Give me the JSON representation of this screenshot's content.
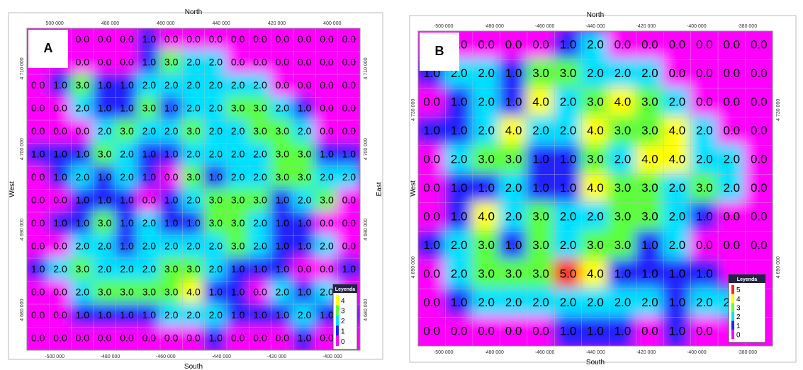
{
  "panels": [
    {
      "label": "A",
      "north": "North",
      "south": "South",
      "west": "West",
      "east": "East",
      "top_ticks": [
        "500 000",
        "480 000",
        "460 000",
        "440 000",
        "420 000",
        "400 000"
      ],
      "bottom_ticks": [
        "-500 000",
        "-480 000",
        "-460 000",
        "-440 000",
        "-420 000",
        "-400 000"
      ],
      "left_ticks": [
        "4 710 000",
        "4 700 000",
        "4 690 000",
        "4 680 000"
      ],
      "right_ticks": [
        "4 710 000",
        "4 700 000",
        "4 690 000",
        "4 680 000"
      ],
      "legend": {
        "title": "Leyenda",
        "levels": [
          "4",
          "3",
          "2",
          "1",
          "0"
        ]
      },
      "grid": [
        [
          null,
          null,
          "0.0",
          "0.0",
          "0.0",
          "1.0",
          "0.0",
          "0.0",
          "0.0",
          "0.0",
          "0.0",
          "0.0",
          "0.0",
          "0.0",
          "0.0"
        ],
        [
          null,
          null,
          "0.0",
          "0.0",
          "0.0",
          "1.0",
          "3.0",
          "2.0",
          "2.0",
          "0.0",
          "0.0",
          "0.0",
          "0.0",
          "0.0",
          "0.0"
        ],
        [
          "0.0",
          "1.0",
          "3.0",
          "1.0",
          "1.0",
          "2.0",
          "2.0",
          "2.0",
          "2.0",
          "2.0",
          "2.0",
          "0.0",
          "0.0",
          "0.0",
          "0.0"
        ],
        [
          "0.0",
          "0.0",
          "2.0",
          "1.0",
          "1.0",
          "3.0",
          "1.0",
          "2.0",
          "2.0",
          "3.0",
          "3.0",
          "2.0",
          "1.0",
          "0.0",
          "0.0"
        ],
        [
          "0.0",
          "0.0",
          "0.0",
          "2.0",
          "3.0",
          "2.0",
          "2.0",
          "3.0",
          "2.0",
          "2.0",
          "3.0",
          "3.0",
          "2.0",
          "0.0",
          "0.0"
        ],
        [
          "1.0",
          "1.0",
          "1.0",
          "3.0",
          "2.0",
          "1.0",
          "1.0",
          "2.0",
          "2.0",
          "2.0",
          "2.0",
          "3.0",
          "3.0",
          "1.0",
          "1.0"
        ],
        [
          "0.0",
          "1.0",
          "2.0",
          "1.0",
          "2.0",
          "1.0",
          "0.0",
          "3.0",
          "1.0",
          "2.0",
          "2.0",
          "3.0",
          "3.0",
          "2.0",
          "2.0"
        ],
        [
          "0.0",
          "0.0",
          "1.0",
          "1.0",
          "1.0",
          "0.0",
          "1.0",
          "2.0",
          "3.0",
          "3.0",
          "3.0",
          "1.0",
          "2.0",
          "3.0",
          "0.0"
        ],
        [
          "0.0",
          "1.0",
          "1.0",
          "3.0",
          "1.0",
          "2.0",
          "1.0",
          "1.0",
          "3.0",
          "3.0",
          "2.0",
          "1.0",
          "1.0",
          "0.0",
          "0.0"
        ],
        [
          "0.0",
          "0.0",
          "2.0",
          "2.0",
          "1.0",
          "2.0",
          "2.0",
          "2.0",
          "2.0",
          "3.0",
          "2.0",
          "1.0",
          "1.0",
          "2.0",
          "0.0"
        ],
        [
          "1.0",
          "2.0",
          "3.0",
          "2.0",
          "2.0",
          "2.0",
          "3.0",
          "3.0",
          "2.0",
          "1.0",
          "1.0",
          "1.0",
          "0.0",
          "0.0",
          "1.0"
        ],
        [
          "0.0",
          "0.0",
          "2.0",
          "3.0",
          "3.0",
          "3.0",
          "3.0",
          "4.0",
          "1.0",
          "1.0",
          "0.0",
          "2.0",
          "1.0",
          "2.0",
          "0.0"
        ],
        [
          "0.0",
          "0.0",
          "1.0",
          "1.0",
          "1.0",
          "1.0",
          "2.0",
          "2.0",
          "2.0",
          "1.0",
          "1.0",
          "1.0",
          "2.0",
          "1.0",
          "1.0"
        ],
        [
          "0.0",
          "0.0",
          "0.0",
          "0.0",
          "0.0",
          "0.0",
          "0.0",
          "0.0",
          "1.0",
          "0.0",
          "0.0",
          "0.0",
          "1.0",
          "0.0",
          "0.0"
        ]
      ]
    },
    {
      "label": "B",
      "north": "North",
      "south": "South",
      "west": "West",
      "top_ticks": [
        "-500 000",
        "-480 000",
        "-460 000",
        "-440 000",
        "-420 000",
        "-400 000",
        "-380 000"
      ],
      "bottom_ticks": [
        "-500 000",
        "-480 000",
        "-460 000",
        "-440 000",
        "-420 000",
        "-400 000",
        "-380 000"
      ],
      "left_ticks": [
        "4 730 000",
        "4 690 000"
      ],
      "right_ticks": [
        "4 730 000",
        "4 690 000"
      ],
      "legend": {
        "title": "Leyenda",
        "levels": [
          "5",
          "4",
          "3",
          "2",
          "1",
          "0"
        ]
      },
      "grid": [
        [
          null,
          "0.0",
          "0.0",
          "0.0",
          "0.0",
          "1.0",
          "2.0",
          "0.0",
          "0.0",
          "0.0",
          "0.0",
          "0.0",
          "0.0"
        ],
        [
          "1.0",
          "2.0",
          "2.0",
          "1.0",
          "3.0",
          "3.0",
          "2.0",
          "2.0",
          "2.0",
          "0.0",
          "0.0",
          "0.0",
          "0.0"
        ],
        [
          "0.0",
          "1.0",
          "2.0",
          "1.0",
          "4.0",
          "2.0",
          "3.0",
          "4.0",
          "3.0",
          "2.0",
          "0.0",
          "0.0",
          "0.0"
        ],
        [
          "1.0",
          "1.0",
          "2.0",
          "4.0",
          "2.0",
          "2.0",
          "4.0",
          "3.0",
          "3.0",
          "4.0",
          "2.0",
          "0.0",
          "0.0"
        ],
        [
          "0.0",
          "2.0",
          "3.0",
          "3.0",
          "1.0",
          "1.0",
          "3.0",
          "2.0",
          "4.0",
          "4.0",
          "2.0",
          "2.0",
          "0.0"
        ],
        [
          "0.0",
          "1.0",
          "1.0",
          "2.0",
          "1.0",
          "1.0",
          "4.0",
          "3.0",
          "3.0",
          "2.0",
          "3.0",
          "2.0",
          "0.0"
        ],
        [
          "0.0",
          "1.0",
          "4.0",
          "2.0",
          "3.0",
          "2.0",
          "2.0",
          "3.0",
          "3.0",
          "2.0",
          "1.0",
          "0.0",
          "0.0"
        ],
        [
          "1.0",
          "2.0",
          "3.0",
          "1.0",
          "3.0",
          "2.0",
          "3.0",
          "3.0",
          "1.0",
          "2.0",
          "0.0",
          "0.0",
          "0.0"
        ],
        [
          "0.0",
          "2.0",
          "3.0",
          "3.0",
          "3.0",
          "5.0",
          "4.0",
          "1.0",
          "1.0",
          "1.0",
          "1.0",
          null,
          null
        ],
        [
          "0.0",
          "1.0",
          "2.0",
          "2.0",
          "2.0",
          "2.0",
          "2.0",
          "2.0",
          "2.0",
          "1.0",
          "2.0",
          "2.0",
          null
        ],
        [
          "0.0",
          "0.0",
          "0.0",
          "0.0",
          "0.0",
          "1.0",
          "1.0",
          "1.0",
          "0.0",
          "1.0",
          "0.0",
          null,
          null
        ]
      ]
    }
  ]
}
